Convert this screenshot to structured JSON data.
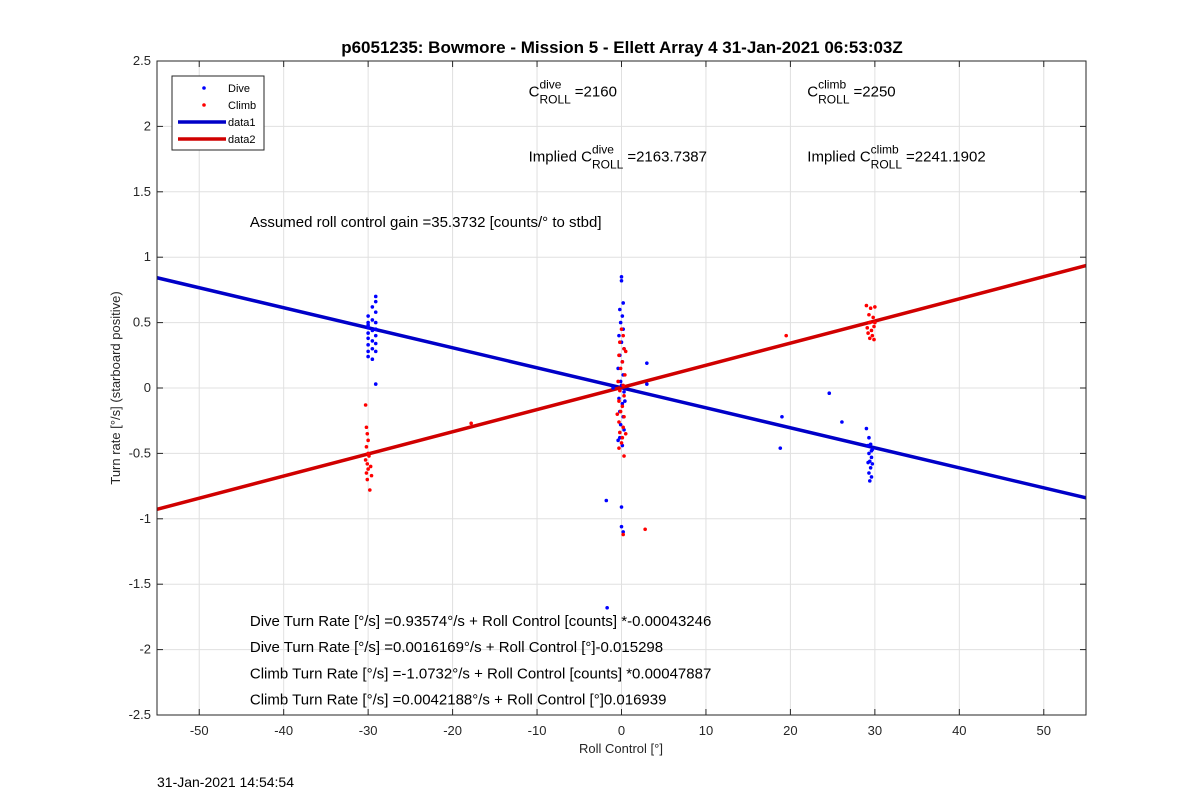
{
  "chart_data": {
    "type": "scatter",
    "title": "p6051235: Bowmore - Mission 5 - Ellett Array 4 31-Jan-2021 06:53:03Z",
    "xlabel": "Roll Control [°]",
    "ylabel": "Turn rate [°/s] (starboard positive)",
    "xlim": [
      -55,
      55
    ],
    "ylim": [
      -2.5,
      2.5
    ],
    "xticks": [
      -50,
      -40,
      -30,
      -20,
      -10,
      0,
      10,
      20,
      30,
      40,
      50
    ],
    "yticks": [
      -2.5,
      -2,
      -1.5,
      -1,
      -0.5,
      0,
      0.5,
      1,
      1.5,
      2,
      2.5
    ],
    "grid": true,
    "legend_position": "top-left",
    "colors": {
      "dive": "#0000ff",
      "climb": "#ff0000",
      "data1": "#0000c8",
      "data2": "#d00000",
      "grid": "#e0e0e0"
    },
    "legend": [
      {
        "label": "Dive",
        "style": "dot",
        "color": "#0000ff"
      },
      {
        "label": "Climb",
        "style": "dot",
        "color": "#ff0000"
      },
      {
        "label": "data1",
        "style": "line",
        "color": "#0000c8"
      },
      {
        "label": "data2",
        "style": "line",
        "color": "#d00000"
      }
    ],
    "lines": [
      {
        "name": "data1",
        "slope": -0.015298,
        "intercept": 0.0016169,
        "color": "#0000c8"
      },
      {
        "name": "data2",
        "slope": 0.016939,
        "intercept": 0.0042188,
        "color": "#d00000"
      }
    ],
    "series": [
      {
        "name": "Dive",
        "color": "#0000ff",
        "points": [
          [
            -30,
            0.55
          ],
          [
            -30,
            0.5
          ],
          [
            -30,
            0.46
          ],
          [
            -30,
            0.42
          ],
          [
            -30,
            0.38
          ],
          [
            -30,
            0.33
          ],
          [
            -30,
            0.28
          ],
          [
            -30,
            0.24
          ],
          [
            -30,
            0.48
          ],
          [
            -29.5,
            0.62
          ],
          [
            -29.5,
            0.52
          ],
          [
            -29.5,
            0.44
          ],
          [
            -29.5,
            0.36
          ],
          [
            -29.5,
            0.3
          ],
          [
            -29.5,
            0.22
          ],
          [
            -29.1,
            0.7
          ],
          [
            -29.1,
            0.66
          ],
          [
            -29.1,
            0.58
          ],
          [
            -29.1,
            0.5
          ],
          [
            -29.1,
            0.45
          ],
          [
            -29.1,
            0.4
          ],
          [
            -29.1,
            0.34
          ],
          [
            -29.1,
            0.28
          ],
          [
            -29.1,
            0.03
          ],
          [
            0,
            0.85
          ],
          [
            0,
            0.82
          ],
          [
            0.2,
            0.65
          ],
          [
            -0.2,
            0.6
          ],
          [
            0.1,
            0.55
          ],
          [
            -0.1,
            0.5
          ],
          [
            0.2,
            0.45
          ],
          [
            -0.3,
            0.4
          ],
          [
            0,
            0.35
          ],
          [
            0.3,
            0.3
          ],
          [
            -0.2,
            0.25
          ],
          [
            0.1,
            0.2
          ],
          [
            -0.4,
            0.15
          ],
          [
            0.2,
            0.1
          ],
          [
            -0.1,
            0.05
          ],
          [
            0,
            0.02
          ],
          [
            0.3,
            -0.03
          ],
          [
            -0.3,
            -0.08
          ],
          [
            0.1,
            -0.12
          ],
          [
            -0.2,
            -0.18
          ],
          [
            0.2,
            -0.22
          ],
          [
            -0.1,
            -0.28
          ],
          [
            0.3,
            -0.32
          ],
          [
            -0.2,
            -0.38
          ],
          [
            0.1,
            -0.44
          ],
          [
            -0.4,
            -0.4
          ],
          [
            0.4,
            -0.1
          ],
          [
            -1.8,
            -0.86
          ],
          [
            0,
            -0.91
          ],
          [
            0,
            -1.06
          ],
          [
            0.2,
            -1.1
          ],
          [
            -1.7,
            -1.68
          ],
          [
            3,
            0.19
          ],
          [
            3,
            0.03
          ],
          [
            -1,
            0.0
          ],
          [
            19,
            -0.22
          ],
          [
            18.8,
            -0.46
          ],
          [
            24.6,
            -0.04
          ],
          [
            26.1,
            -0.26
          ],
          [
            29,
            -0.31
          ],
          [
            29.3,
            -0.38
          ],
          [
            29.5,
            -0.43
          ],
          [
            29.7,
            -0.47
          ],
          [
            29.3,
            -0.5
          ],
          [
            29.6,
            -0.53
          ],
          [
            29.4,
            -0.56
          ],
          [
            29.2,
            -0.57
          ],
          [
            29.7,
            -0.58
          ],
          [
            29.5,
            -0.61
          ],
          [
            29.3,
            -0.65
          ],
          [
            29.6,
            -0.68
          ],
          [
            29.4,
            -0.71
          ],
          [
            29.6,
            -0.48
          ],
          [
            29.2,
            -0.44
          ]
        ]
      },
      {
        "name": "Climb",
        "color": "#ff0000",
        "points": [
          [
            -30.3,
            -0.13
          ],
          [
            -30.2,
            -0.3
          ],
          [
            -30.1,
            -0.35
          ],
          [
            -30,
            -0.4
          ],
          [
            -30.2,
            -0.45
          ],
          [
            -30,
            -0.5
          ],
          [
            -30.3,
            -0.55
          ],
          [
            -30.1,
            -0.58
          ],
          [
            -30,
            -0.62
          ],
          [
            -30.2,
            -0.65
          ],
          [
            -30.1,
            -0.7
          ],
          [
            -29.8,
            -0.78
          ],
          [
            -29.7,
            -0.6
          ],
          [
            -29.9,
            -0.52
          ],
          [
            -29.6,
            -0.67
          ],
          [
            -17.8,
            -0.27
          ],
          [
            0,
            0.45
          ],
          [
            0.2,
            0.4
          ],
          [
            -0.2,
            0.35
          ],
          [
            0.3,
            0.3
          ],
          [
            -0.3,
            0.25
          ],
          [
            0.1,
            0.2
          ],
          [
            -0.1,
            0.15
          ],
          [
            0.4,
            0.1
          ],
          [
            -0.4,
            0.05
          ],
          [
            0.2,
            0.02
          ],
          [
            -0.2,
            -0.02
          ],
          [
            0.3,
            -0.06
          ],
          [
            -0.3,
            -0.1
          ],
          [
            0.1,
            -0.14
          ],
          [
            -0.1,
            -0.18
          ],
          [
            0.3,
            -0.22
          ],
          [
            -0.3,
            -0.26
          ],
          [
            0.2,
            -0.3
          ],
          [
            -0.2,
            -0.34
          ],
          [
            0.1,
            -0.38
          ],
          [
            0,
            -0.42
          ],
          [
            -0.3,
            -0.46
          ],
          [
            0.3,
            -0.52
          ],
          [
            0.5,
            0.28
          ],
          [
            -0.5,
            -0.2
          ],
          [
            0.5,
            -0.35
          ],
          [
            0.2,
            -1.12
          ],
          [
            2.8,
            -1.08
          ],
          [
            19.5,
            0.4
          ],
          [
            29,
            0.63
          ],
          [
            29.5,
            0.61
          ],
          [
            30,
            0.62
          ],
          [
            29.3,
            0.56
          ],
          [
            29.8,
            0.54
          ],
          [
            29.4,
            0.5
          ],
          [
            29.9,
            0.47
          ],
          [
            29.6,
            0.44
          ],
          [
            29.2,
            0.42
          ],
          [
            29.7,
            0.4
          ],
          [
            29.4,
            0.38
          ],
          [
            29.9,
            0.37
          ],
          [
            30,
            0.5
          ],
          [
            29.1,
            0.46
          ]
        ]
      }
    ],
    "annotations": [
      {
        "id": "c-dive",
        "parts": [
          [
            "C",
            "main"
          ],
          [
            "dive",
            "sup"
          ],
          [
            "ROLL",
            "sub"
          ],
          [
            "=2160",
            "main"
          ]
        ],
        "anchor": [
          -11,
          2.23
        ]
      },
      {
        "id": "c-climb",
        "parts": [
          [
            "C",
            "main"
          ],
          [
            "climb",
            "sup"
          ],
          [
            "ROLL",
            "sub"
          ],
          [
            "=2250",
            "main"
          ]
        ],
        "anchor": [
          22,
          2.23
        ]
      },
      {
        "id": "implied-dive",
        "parts": [
          [
            "Implied C",
            "main"
          ],
          [
            "dive",
            "sup"
          ],
          [
            "ROLL",
            "sub"
          ],
          [
            "=2163.7387",
            "main"
          ]
        ],
        "anchor": [
          -11,
          1.73
        ]
      },
      {
        "id": "implied-climb",
        "parts": [
          [
            "Implied C",
            "main"
          ],
          [
            "climb",
            "sup"
          ],
          [
            "ROLL",
            "sub"
          ],
          [
            "=2241.1902",
            "main"
          ]
        ],
        "anchor": [
          22,
          1.73
        ]
      },
      {
        "id": "gain",
        "parts": [
          [
            "Assumed roll control gain =35.3732 [counts/° to stbd]",
            "main"
          ]
        ],
        "anchor": [
          -44,
          1.23
        ]
      },
      {
        "id": "dive-counts",
        "parts": [
          [
            "Dive Turn Rate [°/s] =0.93574°/s + Roll Control [counts] *-0.00043246",
            "main"
          ]
        ],
        "anchor": [
          -44,
          -1.82
        ]
      },
      {
        "id": "dive-deg",
        "parts": [
          [
            "Dive Turn Rate [°/s] =0.0016169°/s + Roll Control [°]-0.015298",
            "main"
          ]
        ],
        "anchor": [
          -44,
          -2.02
        ]
      },
      {
        "id": "climb-counts",
        "parts": [
          [
            "Climb Turn Rate [°/s] =-1.0732°/s + Roll Control [counts] *0.00047887",
            "main"
          ]
        ],
        "anchor": [
          -44,
          -2.22
        ]
      },
      {
        "id": "climb-deg",
        "parts": [
          [
            "Climb Turn Rate [°/s] =0.0042188°/s + Roll Control [°]0.016939",
            "main"
          ]
        ],
        "anchor": [
          -44,
          -2.42
        ]
      }
    ]
  },
  "footer": {
    "timestamp": "31-Jan-2021 14:54:54"
  }
}
